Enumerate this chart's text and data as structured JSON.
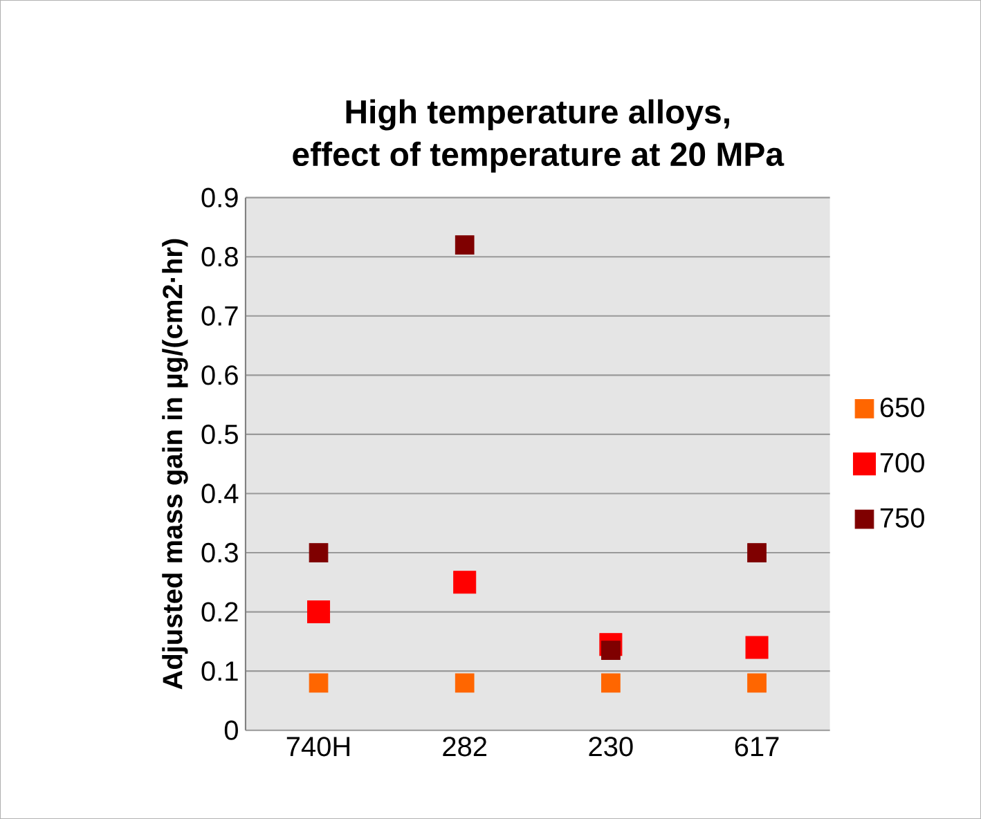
{
  "chart_data": {
    "type": "scatter",
    "title": "High temperature alloys,\neffect of temperature at 20 MPa",
    "ylabel": "Adjusted mass gain in µg/(cm2·hr)",
    "categories": [
      "740H",
      "282",
      "230",
      "617"
    ],
    "series": [
      {
        "name": "650",
        "color": "#ff6600",
        "values": [
          0.08,
          0.08,
          0.08,
          0.08
        ]
      },
      {
        "name": "700",
        "color": "#ff0000",
        "values": [
          0.2,
          0.25,
          0.145,
          0.14
        ]
      },
      {
        "name": "750",
        "color": "#7f0000",
        "values": [
          0.3,
          0.82,
          0.135,
          0.3
        ]
      }
    ],
    "ylim": [
      0,
      0.9
    ],
    "yticks": [
      0,
      0.1,
      0.2,
      0.3,
      0.4,
      0.5,
      0.6,
      0.7,
      0.8,
      0.9
    ],
    "grid": "y",
    "legend": "right",
    "marker": "square"
  }
}
